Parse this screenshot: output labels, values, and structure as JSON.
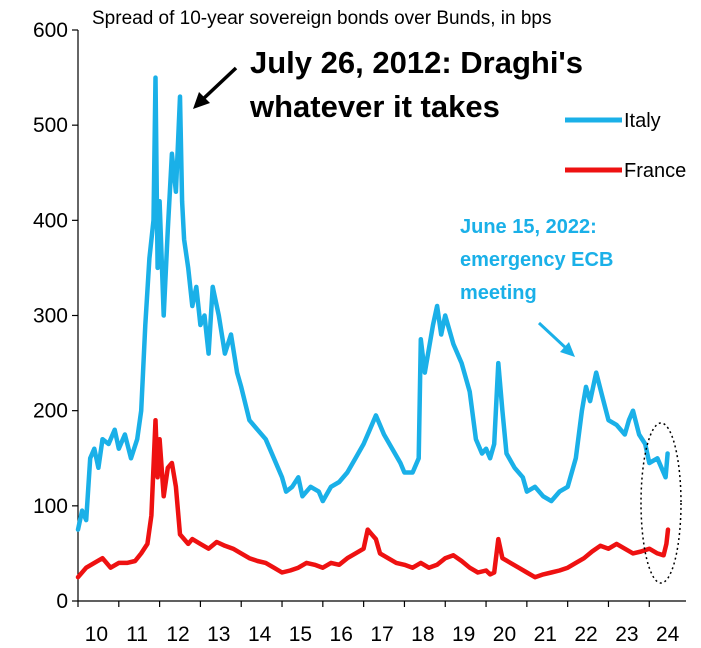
{
  "colors": {
    "italy": "#1ab0e8",
    "france": "#ee1111",
    "axis": "#000000",
    "annotation_blue": "#1ab0e8"
  },
  "chart_data": {
    "type": "line",
    "title": "Spread of 10-year sovereign bonds over Bunds, in bps",
    "xlabel": "",
    "ylabel": "",
    "xlim": [
      2010,
      2024.9
    ],
    "ylim": [
      0,
      600
    ],
    "yticks": [
      0,
      100,
      200,
      300,
      400,
      500,
      600
    ],
    "xtick_labels": [
      "10",
      "11",
      "12",
      "13",
      "14",
      "15",
      "16",
      "17",
      "18",
      "19",
      "20",
      "21",
      "22",
      "23",
      "24"
    ],
    "legend": {
      "position": "top-right",
      "entries": [
        "Italy",
        "France"
      ]
    },
    "series": [
      {
        "name": "Italy",
        "color_key": "italy",
        "x": [
          2010.0,
          2010.1,
          2010.2,
          2010.3,
          2010.4,
          2010.5,
          2010.6,
          2010.75,
          2010.9,
          2011.0,
          2011.15,
          2011.3,
          2011.45,
          2011.55,
          2011.65,
          2011.75,
          2011.85,
          2011.9,
          2011.95,
          2012.0,
          2012.1,
          2012.2,
          2012.3,
          2012.4,
          2012.5,
          2012.55,
          2012.6,
          2012.7,
          2012.8,
          2012.9,
          2013.0,
          2013.1,
          2013.2,
          2013.3,
          2013.45,
          2013.6,
          2013.75,
          2013.9,
          2014.0,
          2014.2,
          2014.4,
          2014.6,
          2014.8,
          2015.0,
          2015.1,
          2015.25,
          2015.4,
          2015.5,
          2015.7,
          2015.9,
          2016.0,
          2016.2,
          2016.4,
          2016.6,
          2016.8,
          2017.0,
          2017.15,
          2017.3,
          2017.5,
          2017.7,
          2017.9,
          2018.0,
          2018.2,
          2018.35,
          2018.4,
          2018.5,
          2018.7,
          2018.8,
          2018.9,
          2019.0,
          2019.2,
          2019.4,
          2019.6,
          2019.75,
          2019.9,
          2020.0,
          2020.1,
          2020.2,
          2020.3,
          2020.4,
          2020.5,
          2020.7,
          2020.9,
          2021.0,
          2021.2,
          2021.4,
          2021.6,
          2021.8,
          2022.0,
          2022.2,
          2022.35,
          2022.45,
          2022.55,
          2022.7,
          2022.85,
          2023.0,
          2023.2,
          2023.4,
          2023.5,
          2023.6,
          2023.75,
          2023.9,
          2024.0,
          2024.2,
          2024.3,
          2024.4,
          2024.45
        ],
        "values": [
          75,
          95,
          85,
          150,
          160,
          140,
          170,
          165,
          180,
          160,
          175,
          150,
          170,
          200,
          290,
          360,
          400,
          550,
          350,
          420,
          300,
          390,
          470,
          430,
          530,
          420,
          380,
          350,
          310,
          330,
          290,
          300,
          260,
          330,
          300,
          260,
          280,
          240,
          225,
          190,
          180,
          170,
          150,
          130,
          115,
          120,
          130,
          110,
          120,
          115,
          105,
          120,
          125,
          135,
          150,
          165,
          180,
          195,
          175,
          160,
          145,
          135,
          135,
          150,
          275,
          240,
          290,
          310,
          280,
          300,
          270,
          250,
          220,
          170,
          155,
          160,
          150,
          165,
          250,
          200,
          155,
          140,
          130,
          115,
          120,
          110,
          105,
          115,
          120,
          150,
          200,
          225,
          210,
          240,
          215,
          190,
          185,
          175,
          190,
          200,
          175,
          165,
          145,
          150,
          140,
          130,
          155
        ]
      },
      {
        "name": "France",
        "color_key": "france",
        "x": [
          2010.0,
          2010.2,
          2010.4,
          2010.6,
          2010.8,
          2011.0,
          2011.2,
          2011.4,
          2011.55,
          2011.7,
          2011.8,
          2011.9,
          2011.95,
          2012.0,
          2012.1,
          2012.2,
          2012.3,
          2012.4,
          2012.5,
          2012.6,
          2012.7,
          2012.8,
          2013.0,
          2013.2,
          2013.4,
          2013.6,
          2013.8,
          2014.0,
          2014.2,
          2014.4,
          2014.6,
          2014.8,
          2015.0,
          2015.2,
          2015.4,
          2015.6,
          2015.8,
          2016.0,
          2016.2,
          2016.4,
          2016.6,
          2016.8,
          2017.0,
          2017.1,
          2017.2,
          2017.3,
          2017.4,
          2017.6,
          2017.8,
          2018.0,
          2018.2,
          2018.4,
          2018.6,
          2018.8,
          2019.0,
          2019.2,
          2019.4,
          2019.6,
          2019.8,
          2020.0,
          2020.1,
          2020.2,
          2020.3,
          2020.4,
          2020.6,
          2020.8,
          2021.0,
          2021.2,
          2021.4,
          2021.6,
          2021.8,
          2022.0,
          2022.2,
          2022.4,
          2022.6,
          2022.8,
          2023.0,
          2023.2,
          2023.4,
          2023.6,
          2023.8,
          2024.0,
          2024.2,
          2024.35,
          2024.42,
          2024.46
        ],
        "values": [
          25,
          35,
          40,
          45,
          35,
          40,
          40,
          42,
          50,
          60,
          90,
          190,
          130,
          170,
          110,
          140,
          145,
          120,
          70,
          65,
          60,
          65,
          60,
          55,
          62,
          58,
          55,
          50,
          45,
          42,
          40,
          35,
          30,
          32,
          35,
          40,
          38,
          35,
          40,
          38,
          45,
          50,
          55,
          75,
          70,
          65,
          50,
          45,
          40,
          38,
          35,
          40,
          35,
          38,
          45,
          48,
          42,
          35,
          30,
          32,
          28,
          30,
          65,
          45,
          40,
          35,
          30,
          25,
          28,
          30,
          32,
          35,
          40,
          45,
          52,
          58,
          55,
          60,
          55,
          50,
          52,
          55,
          50,
          48,
          60,
          75
        ]
      }
    ],
    "annotations": [
      {
        "text": "July 26, 2012: Draghi's",
        "target_x": 2012.57,
        "target_y": 520
      },
      {
        "text": "whatever it takes"
      },
      {
        "text": "June 15, 2022:",
        "target_x": 2022.45,
        "target_y": 255
      },
      {
        "text": "emergency ECB"
      },
      {
        "text": "meeting"
      }
    ]
  }
}
